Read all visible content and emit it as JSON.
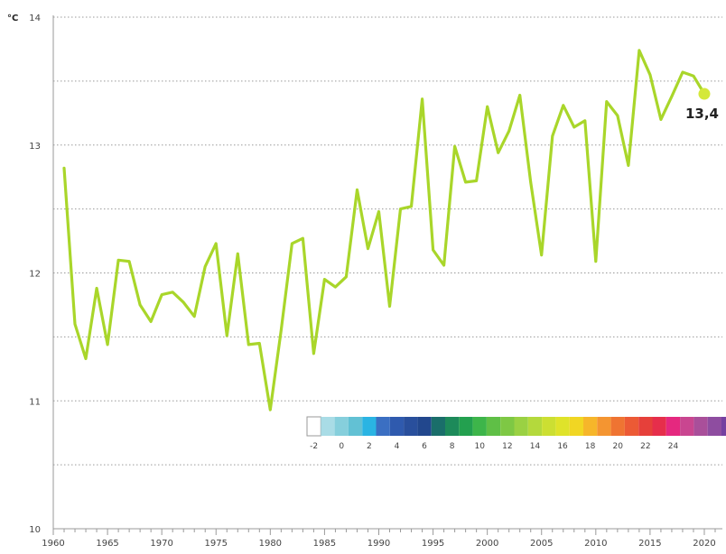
{
  "chart_data": {
    "type": "line",
    "title": "",
    "xlabel": "",
    "ylabel": "",
    "unit_label": "°C",
    "xlim": [
      1960,
      2021
    ],
    "ylim": [
      10,
      14
    ],
    "y_ticks": [
      10,
      11,
      12,
      13,
      14
    ],
    "y_tick_labels": [
      "10",
      "11",
      "12",
      "13",
      "14"
    ],
    "x_ticks": [
      1960,
      1965,
      1970,
      1975,
      1980,
      1985,
      1990,
      1995,
      2000,
      2005,
      2010,
      2015,
      2020
    ],
    "x_tick_labels": [
      "1960",
      "1965",
      "1970",
      "1975",
      "1980",
      "1985",
      "1990",
      "1995",
      "2000",
      "2005",
      "2010",
      "2015",
      "2020"
    ],
    "grid": "horizontal dotted",
    "x": [
      1961,
      1962,
      1963,
      1964,
      1965,
      1966,
      1967,
      1968,
      1969,
      1970,
      1971,
      1972,
      1973,
      1974,
      1975,
      1976,
      1977,
      1978,
      1979,
      1980,
      1981,
      1982,
      1983,
      1984,
      1985,
      1986,
      1987,
      1988,
      1989,
      1990,
      1991,
      1992,
      1993,
      1994,
      1995,
      1996,
      1997,
      1998,
      1999,
      2000,
      2001,
      2002,
      2003,
      2004,
      2005,
      2006,
      2007,
      2008,
      2009,
      2010,
      2011,
      2012,
      2013,
      2014,
      2015,
      2016,
      2017,
      2018,
      2019,
      2020
    ],
    "values": [
      12.82,
      11.6,
      11.33,
      11.88,
      11.44,
      12.1,
      12.09,
      11.75,
      11.62,
      11.83,
      11.85,
      11.77,
      11.66,
      12.05,
      12.23,
      11.51,
      12.15,
      11.44,
      11.45,
      10.93,
      11.55,
      12.23,
      12.27,
      11.37,
      11.95,
      11.89,
      11.97,
      12.65,
      12.19,
      12.48,
      11.74,
      12.5,
      12.52,
      13.36,
      12.18,
      12.06,
      12.99,
      12.71,
      12.72,
      13.3,
      12.94,
      13.11,
      13.39,
      12.71,
      12.14,
      13.07,
      13.31,
      13.14,
      13.19,
      12.09,
      13.34,
      13.23,
      12.84,
      13.74,
      13.55,
      13.2,
      13.38,
      13.57,
      13.54,
      13.4
    ],
    "line_color": "#a9d62a",
    "highlight_point": {
      "x": 2020,
      "value": 13.4,
      "label": "13,4",
      "color": "#d4e83a"
    },
    "color_scale": {
      "placement": "bottom-right",
      "colors": [
        "#ffffff",
        "#a9dce6",
        "#86cfdc",
        "#62c1d4",
        "#2ab4e3",
        "#3b6fc2",
        "#2f5aae",
        "#294f9c",
        "#22478d",
        "#1a6e6a",
        "#1d8a5a",
        "#23a04f",
        "#3db54a",
        "#5fbf46",
        "#7ec844",
        "#9ad143",
        "#b4d93c",
        "#ccdf32",
        "#dfe32a",
        "#f1d623",
        "#f6b62a",
        "#f49531",
        "#ef7432",
        "#ec5a35",
        "#e6403a",
        "#e62e4b",
        "#e5287f",
        "#c94690",
        "#a94f9a",
        "#8e4da0",
        "#7540a0"
      ],
      "labels": [
        "-2",
        "0",
        "2",
        "4",
        "6",
        "8",
        "10",
        "12",
        "14",
        "16",
        "18",
        "20",
        "22",
        "24"
      ]
    }
  }
}
